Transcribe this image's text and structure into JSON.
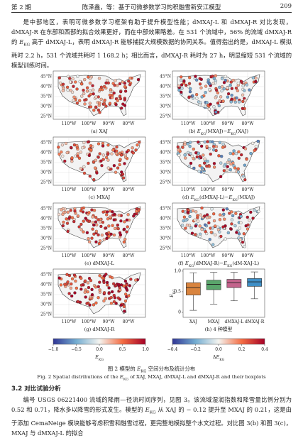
{
  "header": {
    "left": "第 2 期",
    "center": "陈泽鑫，等：基于可微参数学习的积融雪新安江模型",
    "page": "209"
  },
  "paragraphs": [
    [
      "是中部地区，表明可微参数学习框架有助于提升模型性能；dMXAJ-L 和 dMXAJ-R 对比发现，dMXAJ-R 在东部和西部的拟合效果更好，而在中部效果略差。在 531 个流域中，56% 的流域 dMXAJ-R 的 ",
      {
        "i": "E",
        "sub": "KG"
      },
      " 高于 dMXAJ-L，表明 dMXAJ-R 能够捕捉大规模数据的协同关系。值得指出的是，dMXAJ-L 模拟耗时 2.2 h，531 个流域共耗时 1 168.2 h；相比而言，dMXAJ-R 耗时为 27 h，明显缩短 531 个流域的模型训练时间。"
    ],
    [
      "编号 USGS 06221400 流域的降雨—径流时间序列，见图 3。该流域湿润指数和降雪量比例分别为 0.52 和 0.71，降水多以降雪的形式发生。模型的 ",
      {
        "i": "E",
        "sub": "KG"
      },
      " 从 XAJ 的 − 0.12 提升至 MXAJ 的 0.21，这是由于添加 CemaNeige 模块能够考虑积雪和融雪过程，更完整地模拟整个水文过程。对比图 3(b) 和图 3(c)，MXAJ 与 dMXAJ-L 的拟合"
    ]
  ],
  "figure": {
    "map_axes": {
      "lat": [
        "45°N",
        "40°N",
        "35°N",
        "30°N",
        "25°N"
      ],
      "lon": [
        "110°W",
        "100°W",
        "90°W",
        "80°W"
      ]
    },
    "panels": [
      [
        "(a) XAJ"
      ],
      [
        "(b) ",
        {
          "i": "E",
          "sub": "KG"
        },
        "(MXAJ)−",
        {
          "i": "E",
          "sub": "KG"
        },
        "(XAJ)"
      ],
      [
        "(c) MXAJ"
      ],
      [
        "(d) ",
        {
          "i": "E",
          "sub": "KG"
        },
        "(dMXAJ-L)−",
        {
          "i": "E",
          "sub": "KG"
        },
        "(MXAJ)"
      ],
      [
        "(e) dMXAJ-L"
      ],
      [
        "(f) ",
        {
          "i": "E",
          "sub": "KG"
        },
        "(dMXAJ-R)−",
        {
          "i": "E",
          "sub": "KG"
        },
        "(dM-XAJ-L)"
      ],
      [
        "(g) dMXAJ-R"
      ],
      [
        "(h) 4 种模型"
      ]
    ],
    "boxplot": {
      "type": "box",
      "ylabel": [
        {
          "i": "E",
          "sub": "KG"
        }
      ],
      "categories": [
        "XAJ",
        "MXAJ",
        "dMXAJ-L",
        "dMXAJ-R"
      ],
      "colors": [
        "#d9843e",
        "#5aa56b",
        "#c4638c",
        "#3f8fc6"
      ],
      "ylim": [
        -0.12,
        1.05
      ],
      "yticks": [
        0,
        0.5,
        {
          "value": 1,
          "label": "1.0"
        }
      ],
      "whislo": [
        0.05,
        0.2,
        0.28,
        0.33
      ],
      "q1": [
        0.42,
        0.55,
        0.6,
        0.63
      ],
      "median": [
        0.6,
        0.68,
        0.72,
        0.74
      ],
      "q3": [
        0.72,
        0.78,
        0.8,
        0.82
      ],
      "whishi": [
        0.96,
        0.97,
        0.97,
        0.98
      ]
    },
    "colorbars": [
      {
        "label": [
          {
            "i": "E",
            "sub": "KG"
          }
        ],
        "clim": [
          -1,
          1
        ],
        "ticks": [
          {
            "value": -1,
            "label": "−1.0"
          },
          {
            "value": -0.5,
            "label": "−0.5"
          },
          {
            "value": 0,
            "label": "0.0"
          },
          0.5,
          {
            "value": 1,
            "label": "1.0"
          }
        ]
      },
      {
        "label": [
          "Δ",
          {
            "i": "E",
            "sub": "KG"
          }
        ],
        "clim": [
          -0.4,
          0.4
        ],
        "ticks": [
          {
            "value": -0.4,
            "label": "−0.4"
          },
          {
            "value": -0.2,
            "label": "−0.2"
          },
          {
            "value": 0,
            "label": "0.0"
          },
          0.2,
          0.4
        ]
      }
    ],
    "caption_cn": [
      "图 2  模型的 ",
      {
        "i": "E",
        "sub": "KG"
      },
      " 空间分布及统计分布"
    ],
    "caption_en": [
      "Fig. 2  Spatial distributions of the ",
      {
        "i": "E",
        "sub": "KG"
      },
      " of XAJ, MXAJ, dMXAJ-L and dMXAJ-R and their boxplots"
    ]
  },
  "section": "3.2  对比试验分析"
}
